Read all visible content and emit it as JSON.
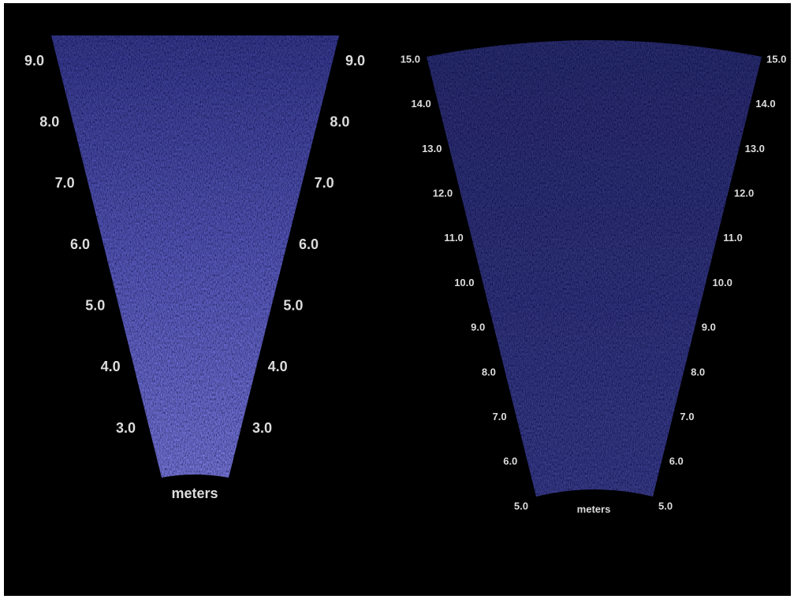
{
  "left_sonar": {
    "left_scale": [
      "9.0",
      "8.0",
      "7.0",
      "6.0",
      "5.0",
      "4.0",
      "3.0"
    ],
    "right_scale": [
      "9.0",
      "8.0",
      "7.0",
      "6.0",
      "5.0",
      "4.0",
      "3.0"
    ],
    "unit": "meters"
  },
  "right_sonar": {
    "left_scale": [
      "15.0",
      "14.0",
      "13.0",
      "12.0",
      "11.0",
      "10.0",
      "9.0",
      "8.0",
      "7.0",
      "6.0",
      "5.0"
    ],
    "right_scale": [
      "15.0",
      "14.0",
      "13.0",
      "12.0",
      "11.0",
      "10.0",
      "9.0",
      "8.0",
      "7.0",
      "6.0",
      "5.0"
    ],
    "unit": "meters"
  }
}
